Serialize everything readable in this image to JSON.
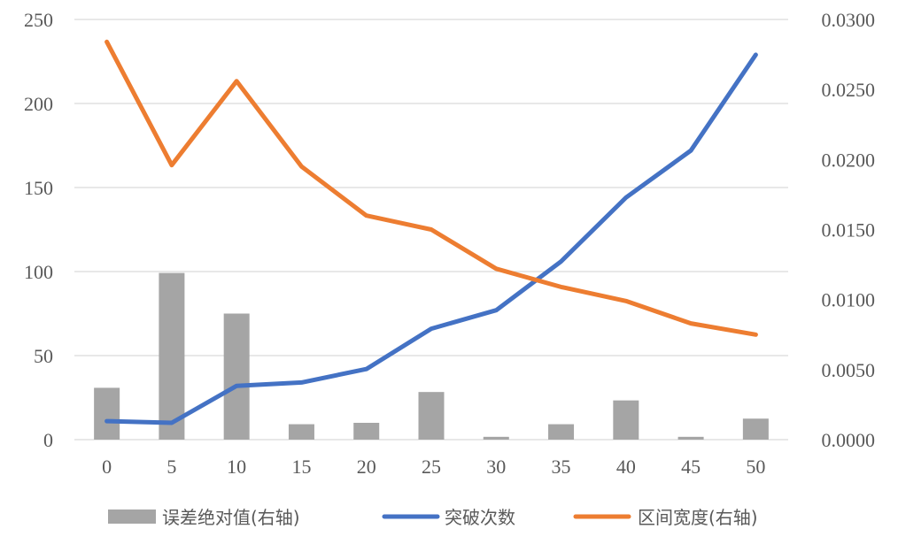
{
  "chart_data": {
    "type": "bar+line",
    "categories": [
      "0",
      "5",
      "10",
      "15",
      "20",
      "25",
      "30",
      "35",
      "40",
      "45",
      "50"
    ],
    "series": [
      {
        "name": "误差绝对值(右轴)",
        "kind": "bar",
        "axis": "right",
        "color": "#a5a5a5",
        "values": [
          0.0037,
          0.0119,
          0.009,
          0.0011,
          0.0012,
          0.0034,
          0.0002,
          0.0011,
          0.0028,
          0.0002,
          0.0015
        ]
      },
      {
        "name": "突破次数",
        "kind": "line",
        "axis": "left",
        "color": "#4472c4",
        "values": [
          11,
          10,
          32,
          34,
          42,
          66,
          77,
          106,
          144,
          172,
          229
        ]
      },
      {
        "name": "区间宽度(右轴)",
        "kind": "line",
        "axis": "right",
        "color": "#ed7d31",
        "values": [
          0.0284,
          0.0196,
          0.0256,
          0.0195,
          0.016,
          0.015,
          0.0122,
          0.0109,
          0.0099,
          0.0083,
          0.0075
        ]
      }
    ],
    "y_left": {
      "lim": [
        0,
        250
      ],
      "ticks": [
        "0",
        "50",
        "100",
        "150",
        "200",
        "250"
      ]
    },
    "y_right": {
      "lim": [
        0,
        0.03
      ],
      "ticks": [
        "0.0000",
        "0.0050",
        "0.0100",
        "0.0150",
        "0.0200",
        "0.0250",
        "0.0300"
      ]
    },
    "grid": true,
    "legend_position": "bottom"
  }
}
